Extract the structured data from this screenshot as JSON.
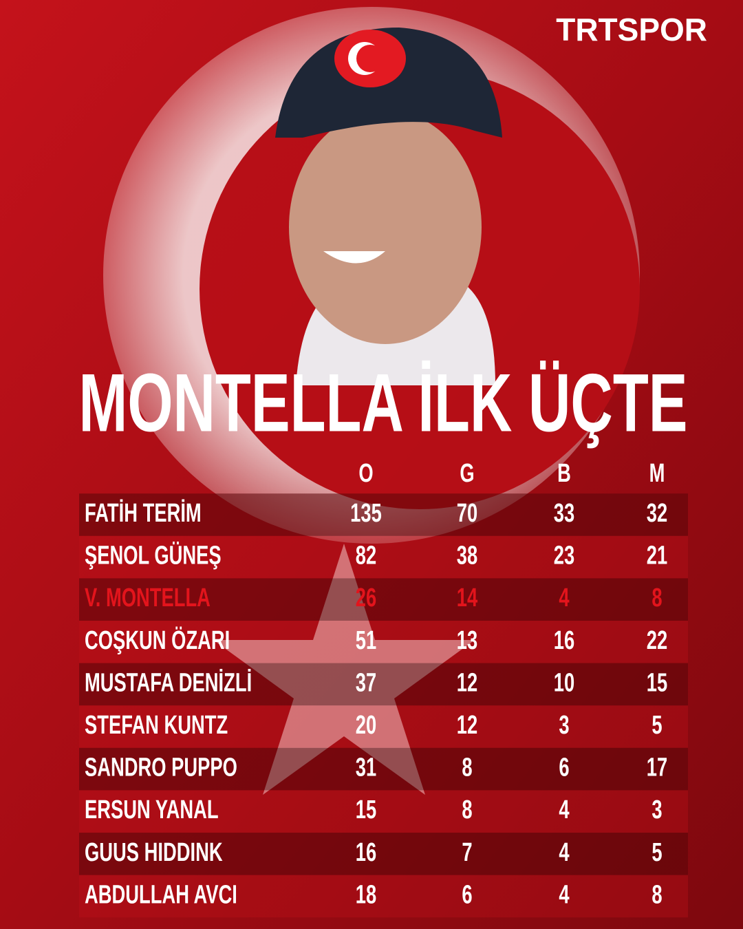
{
  "brand": "TRTSPOR",
  "title": "MONTELLA İLK ÜÇTE",
  "table": {
    "headers": [
      "O",
      "G",
      "B",
      "M"
    ],
    "rows": [
      {
        "name": "FATİH TERİM",
        "stats": [
          135,
          70,
          33,
          32
        ]
      },
      {
        "name": "ŞENOL GÜNEŞ",
        "stats": [
          82,
          38,
          23,
          21
        ]
      },
      {
        "name": "V. MONTELLA",
        "stats": [
          26,
          14,
          4,
          8
        ],
        "color": "#e3141c"
      },
      {
        "name": "COŞKUN ÖZARI",
        "stats": [
          51,
          13,
          16,
          22
        ]
      },
      {
        "name": "MUSTAFA DENİZLİ",
        "stats": [
          37,
          12,
          10,
          15
        ]
      },
      {
        "name": "STEFAN KUNTZ",
        "stats": [
          20,
          12,
          3,
          5
        ]
      },
      {
        "name": "SANDRO PUPPO",
        "stats": [
          31,
          8,
          6,
          17
        ]
      },
      {
        "name": "ERSUN YANAL",
        "stats": [
          15,
          8,
          4,
          3
        ]
      },
      {
        "name": "GUUS HIDDINK",
        "stats": [
          16,
          7,
          4,
          5
        ]
      },
      {
        "name": "ABDULLAH AVCI",
        "stats": [
          18,
          6,
          4,
          8
        ]
      }
    ]
  }
}
